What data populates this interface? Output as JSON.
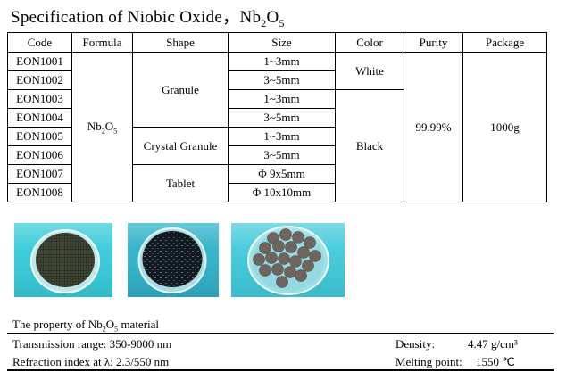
{
  "title": {
    "prefix": "Specification of Niobic Oxide，",
    "formula": "Nb2O5"
  },
  "table": {
    "headers": [
      "Code",
      "Formula",
      "Shape",
      "Size",
      "Color",
      "Purity",
      "Package"
    ],
    "formula": "Nb2O5",
    "rows": [
      {
        "code": "EON1001",
        "size": "1~3mm"
      },
      {
        "code": "EON1002",
        "size": "3~5mm"
      },
      {
        "code": "EON1003",
        "size": "1~3mm"
      },
      {
        "code": "EON1004",
        "size": "3~5mm"
      },
      {
        "code": "EON1005",
        "size": "1~3mm"
      },
      {
        "code": "EON1006",
        "size": "3~5mm"
      },
      {
        "code": "EON1007",
        "size": "Φ 9x5mm"
      },
      {
        "code": "EON1008",
        "size": "Φ 10x10mm"
      }
    ],
    "shapes": [
      {
        "label": "Granule"
      },
      {
        "label": "Crystal Granule"
      },
      {
        "label": "Tablet"
      }
    ],
    "colors": [
      {
        "label": "White"
      },
      {
        "label": "Black"
      }
    ],
    "purity": "99.99%",
    "package": "1000g"
  },
  "photos": {
    "items": [
      {
        "name": "granule-dish-photo",
        "bg": "#35cbd8",
        "content": "#333a2b"
      },
      {
        "name": "crystal-granule-dish-photo",
        "bg": "#2fb2cb",
        "content": "#111921"
      },
      {
        "name": "tablet-dish-photo",
        "bg": "#3fc9da",
        "content": "#6e665e"
      }
    ]
  },
  "properties": {
    "heading_prefix": "The property of ",
    "heading_formula": "Nb2O5",
    "heading_suffix": " material",
    "transmission": "Transmission range: 350-9000 nm",
    "refraction": "Refraction index at λ: 2.3/550 nm",
    "density_label": "Density:",
    "density_value": "4.47 g/cm³",
    "melting_label": "Melting point:",
    "melting_value": "1550  ℃"
  }
}
